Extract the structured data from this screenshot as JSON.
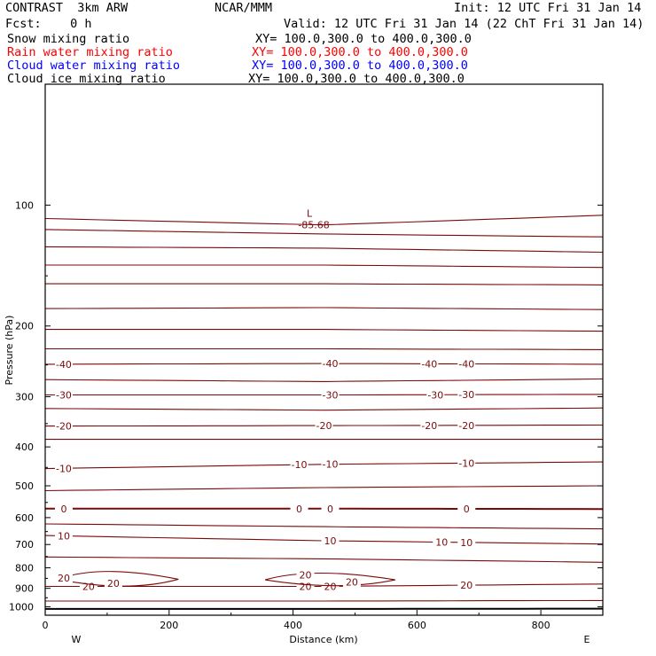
{
  "header": {
    "model": "CONTRAST  3km ARW",
    "org": "NCAR/MMM",
    "init": "Init: 12 UTC Fri 31 Jan 14",
    "fcst": "Fcst:    0 h",
    "valid": "Valid: 12 UTC Fri 31 Jan 14 (22 ChT Fri 31 Jan 14)",
    "fields": [
      {
        "name": "Snow mixing ratio",
        "xy": "XY= 100.0,300.0 to 400.0,300.0",
        "color": "#000000"
      },
      {
        "name": "Rain water mixing ratio",
        "xy": "XY= 100.0,300.0 to 400.0,300.0",
        "color": "#ff0000"
      },
      {
        "name": "Cloud water mixing ratio",
        "xy": "XY= 100.0,300.0 to 400.0,300.0",
        "color": "#0000ff"
      },
      {
        "name": "Cloud ice mixing ratio",
        "xy": "XY= 100.0,300.0 to 400.0,300.0",
        "color": "#000000"
      }
    ]
  },
  "chart_data": {
    "type": "contour",
    "xlabel": "Distance (km)",
    "ylabel": "Pressure (hPa)",
    "xlim": [
      0,
      900
    ],
    "ylim": [
      1050,
      50
    ],
    "yscale": "log",
    "x_ticks": [
      "0",
      "200",
      "400",
      "600",
      "800"
    ],
    "x_tick_values": [
      0,
      200,
      400,
      600,
      800
    ],
    "y_ticks": [
      "100",
      "200",
      "300",
      "400",
      "500",
      "600",
      "700",
      "800",
      "900",
      "1000"
    ],
    "y_tick_values": [
      100,
      200,
      300,
      400,
      500,
      600,
      700,
      800,
      900,
      1000
    ],
    "x_end_labels": {
      "left": "W",
      "right": "E"
    },
    "contour_color": "#7a0a0a",
    "extremum": {
      "label": "L",
      "value": "-85.68",
      "x": 435,
      "p": 108
    },
    "isolines": [
      {
        "p": [
          108,
          112,
          106
        ],
        "label": null
      },
      {
        "p": [
          115,
          118,
          120
        ],
        "label": null
      },
      {
        "p": [
          127,
          128,
          131
        ],
        "label": null
      },
      {
        "p": [
          141,
          141,
          143
        ],
        "label": null
      },
      {
        "p": [
          157,
          157,
          158
        ],
        "label": null
      },
      {
        "p": [
          181,
          180,
          182
        ],
        "label": null
      },
      {
        "p": [
          204,
          204,
          206
        ],
        "label": null
      },
      {
        "p": [
          228,
          228,
          229
        ],
        "label": null
      },
      {
        "p": [
          249,
          248,
          249
        ],
        "label": "-40",
        "at": [
          30,
          460,
          620,
          680
        ]
      },
      {
        "p": [
          272,
          275,
          271
        ],
        "label": null
      },
      {
        "p": [
          297,
          297,
          296
        ],
        "label": "-30",
        "at": [
          30,
          460,
          630,
          680
        ]
      },
      {
        "p": [
          321,
          324,
          320
        ],
        "label": null
      },
      {
        "p": [
          355,
          354,
          353
        ],
        "label": "-20",
        "at": [
          30,
          450,
          620,
          680
        ]
      },
      {
        "p": [
          383,
          383,
          383
        ],
        "label": null
      },
      {
        "p": [
          453,
          442,
          436
        ],
        "label": "-10",
        "at": [
          30,
          410,
          460,
          680
        ]
      },
      {
        "p": [
          514,
          505,
          500
        ],
        "label": null
      },
      {
        "p": [
          570,
          570,
          571
        ],
        "label": "0",
        "at": [
          30,
          410,
          460,
          680
        ]
      },
      {
        "p": [
          622,
          632,
          640
        ],
        "label": null
      },
      {
        "p": [
          665,
          685,
          698
        ],
        "label": "10",
        "at": [
          30,
          460,
          640,
          680
        ]
      },
      {
        "p": [
          752,
          760,
          775
        ],
        "label": null
      },
      {
        "p": [
          890,
          890,
          878
        ],
        "label": "20",
        "at": [
          70,
          420,
          460,
          680
        ]
      },
      {
        "p": [
          968,
          968,
          965
        ],
        "label": null
      },
      {
        "p": [
          1013,
          1013,
          1011
        ],
        "label": null,
        "heavy": true
      }
    ],
    "closed_contours": [
      {
        "label": "20",
        "x": [
          20,
          215
        ],
        "p": [
          822,
          888
        ]
      },
      {
        "label": "20",
        "x": [
          355,
          565
        ],
        "p": [
          835,
          880
        ]
      }
    ],
    "closed_labels": [
      {
        "text": "20",
        "x": 30,
        "p": 848
      },
      {
        "text": "20",
        "x": 110,
        "p": 875
      },
      {
        "text": "20",
        "x": 420,
        "p": 834
      },
      {
        "text": "20",
        "x": 495,
        "p": 868
      }
    ]
  }
}
